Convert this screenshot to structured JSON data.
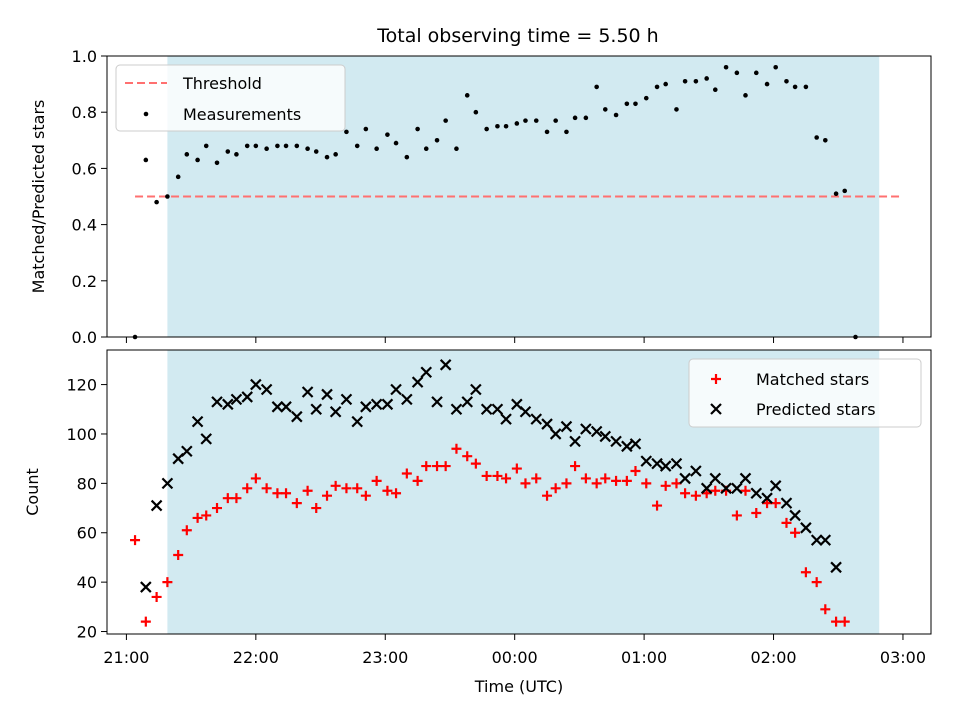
{
  "chart_data": [
    {
      "type": "scatter",
      "title": "Total observing time = 5.50 h",
      "xlabel": "",
      "ylabel": "Matched/Predicted stars",
      "xlim": [
        "20:51",
        "03:13"
      ],
      "ylim": [
        0,
        1.0
      ],
      "yticks": [
        "0.0",
        "0.2",
        "0.4",
        "0.6",
        "0.8",
        "1.0"
      ],
      "xticks": [
        "21:00",
        "22:00",
        "23:00",
        "00:00",
        "01:00",
        "02:00",
        "03:00"
      ],
      "shaded_span": [
        "21:19",
        "02:49"
      ],
      "legend_position": "upper-left",
      "threshold": {
        "name": "Threshold",
        "value": 0.5,
        "x_range": [
          "21:04",
          "03:00"
        ],
        "color": "#ff7070"
      },
      "series": [
        {
          "name": "Measurements",
          "color": "#000000",
          "points": [
            [
              "21:04",
              0.0
            ],
            [
              "21:09",
              0.63
            ],
            [
              "21:14",
              0.48
            ],
            [
              "21:19",
              0.5
            ],
            [
              "21:24",
              0.57
            ],
            [
              "21:28",
              0.65
            ],
            [
              "21:33",
              0.63
            ],
            [
              "21:37",
              0.68
            ],
            [
              "21:42",
              0.62
            ],
            [
              "21:47",
              0.66
            ],
            [
              "21:51",
              0.65
            ],
            [
              "21:56",
              0.68
            ],
            [
              "22:00",
              0.68
            ],
            [
              "22:05",
              0.67
            ],
            [
              "22:10",
              0.68
            ],
            [
              "22:14",
              0.68
            ],
            [
              "22:19",
              0.68
            ],
            [
              "22:24",
              0.67
            ],
            [
              "22:28",
              0.66
            ],
            [
              "22:33",
              0.64
            ],
            [
              "22:37",
              0.65
            ],
            [
              "22:42",
              0.73
            ],
            [
              "22:47",
              0.68
            ],
            [
              "22:51",
              0.74
            ],
            [
              "22:56",
              0.67
            ],
            [
              "23:01",
              0.72
            ],
            [
              "23:05",
              0.69
            ],
            [
              "23:10",
              0.64
            ],
            [
              "23:15",
              0.74
            ],
            [
              "23:19",
              0.67
            ],
            [
              "23:24",
              0.7
            ],
            [
              "23:28",
              0.77
            ],
            [
              "23:33",
              0.67
            ],
            [
              "23:38",
              0.86
            ],
            [
              "23:42",
              0.8
            ],
            [
              "23:47",
              0.74
            ],
            [
              "23:52",
              0.75
            ],
            [
              "23:56",
              0.75
            ],
            [
              "00:01",
              0.76
            ],
            [
              "00:05",
              0.77
            ],
            [
              "00:10",
              0.77
            ],
            [
              "00:15",
              0.73
            ],
            [
              "00:19",
              0.77
            ],
            [
              "00:24",
              0.73
            ],
            [
              "00:28",
              0.78
            ],
            [
              "00:33",
              0.78
            ],
            [
              "00:38",
              0.89
            ],
            [
              "00:42",
              0.81
            ],
            [
              "00:47",
              0.79
            ],
            [
              "00:52",
              0.83
            ],
            [
              "00:56",
              0.83
            ],
            [
              "01:01",
              0.85
            ],
            [
              "01:06",
              0.89
            ],
            [
              "01:10",
              0.9
            ],
            [
              "01:15",
              0.81
            ],
            [
              "01:19",
              0.91
            ],
            [
              "01:24",
              0.91
            ],
            [
              "01:29",
              0.92
            ],
            [
              "01:33",
              0.88
            ],
            [
              "01:38",
              0.96
            ],
            [
              "01:43",
              0.94
            ],
            [
              "01:47",
              0.86
            ],
            [
              "01:52",
              0.94
            ],
            [
              "01:57",
              0.9
            ],
            [
              "02:01",
              0.96
            ],
            [
              "02:06",
              0.91
            ],
            [
              "02:10",
              0.89
            ],
            [
              "02:15",
              0.89
            ],
            [
              "02:20",
              0.71
            ],
            [
              "02:24",
              0.7
            ],
            [
              "02:29",
              0.51
            ],
            [
              "02:33",
              0.52
            ],
            [
              "02:38",
              0.0
            ]
          ]
        }
      ]
    },
    {
      "type": "scatter",
      "title": "",
      "xlabel": "Time (UTC)",
      "ylabel": "Count",
      "xlim": [
        "20:51",
        "03:13"
      ],
      "ylim": [
        19,
        134
      ],
      "yticks": [
        "20",
        "40",
        "60",
        "80",
        "100",
        "120"
      ],
      "xticks": [
        "21:00",
        "22:00",
        "23:00",
        "00:00",
        "01:00",
        "02:00",
        "03:00"
      ],
      "shaded_span": [
        "21:19",
        "02:49"
      ],
      "legend_position": "upper-right",
      "series": [
        {
          "name": "Matched stars",
          "color": "#ff0000",
          "marker": "plus",
          "points": [
            [
              "21:04",
              57
            ],
            [
              "21:09",
              24
            ],
            [
              "21:14",
              34
            ],
            [
              "21:19",
              40
            ],
            [
              "21:24",
              51
            ],
            [
              "21:28",
              61
            ],
            [
              "21:33",
              66
            ],
            [
              "21:37",
              67
            ],
            [
              "21:42",
              70
            ],
            [
              "21:47",
              74
            ],
            [
              "21:51",
              74
            ],
            [
              "21:56",
              78
            ],
            [
              "22:00",
              82
            ],
            [
              "22:05",
              78
            ],
            [
              "22:10",
              76
            ],
            [
              "22:14",
              76
            ],
            [
              "22:19",
              72
            ],
            [
              "22:24",
              77
            ],
            [
              "22:28",
              70
            ],
            [
              "22:33",
              75
            ],
            [
              "22:37",
              79
            ],
            [
              "22:42",
              78
            ],
            [
              "22:47",
              78
            ],
            [
              "22:51",
              75
            ],
            [
              "22:56",
              81
            ],
            [
              "23:01",
              77
            ],
            [
              "23:05",
              76
            ],
            [
              "23:10",
              84
            ],
            [
              "23:15",
              81
            ],
            [
              "23:19",
              87
            ],
            [
              "23:24",
              87
            ],
            [
              "23:28",
              87
            ],
            [
              "23:33",
              94
            ],
            [
              "23:38",
              91
            ],
            [
              "23:42",
              88
            ],
            [
              "23:47",
              83
            ],
            [
              "23:52",
              83
            ],
            [
              "23:56",
              82
            ],
            [
              "00:01",
              86
            ],
            [
              "00:05",
              80
            ],
            [
              "00:10",
              82
            ],
            [
              "00:15",
              75
            ],
            [
              "00:19",
              78
            ],
            [
              "00:24",
              80
            ],
            [
              "00:28",
              87
            ],
            [
              "00:33",
              82
            ],
            [
              "00:38",
              80
            ],
            [
              "00:42",
              82
            ],
            [
              "00:47",
              81
            ],
            [
              "00:52",
              81
            ],
            [
              "00:56",
              85
            ],
            [
              "01:01",
              80
            ],
            [
              "01:06",
              71
            ],
            [
              "01:10",
              79
            ],
            [
              "01:15",
              80
            ],
            [
              "01:19",
              76
            ],
            [
              "01:24",
              75
            ],
            [
              "01:29",
              76
            ],
            [
              "01:33",
              77
            ],
            [
              "01:38",
              77
            ],
            [
              "01:43",
              67
            ],
            [
              "01:47",
              77
            ],
            [
              "01:52",
              68
            ],
            [
              "01:57",
              72
            ],
            [
              "02:01",
              72
            ],
            [
              "02:06",
              64
            ],
            [
              "02:10",
              60
            ],
            [
              "02:15",
              44
            ],
            [
              "02:20",
              40
            ],
            [
              "02:24",
              29
            ],
            [
              "02:29",
              24
            ],
            [
              "02:33",
              24
            ]
          ]
        },
        {
          "name": "Predicted stars",
          "color": "#000000",
          "marker": "x",
          "points": [
            [
              "21:09",
              38
            ],
            [
              "21:14",
              71
            ],
            [
              "21:19",
              80
            ],
            [
              "21:24",
              90
            ],
            [
              "21:28",
              93
            ],
            [
              "21:33",
              105
            ],
            [
              "21:37",
              98
            ],
            [
              "21:42",
              113
            ],
            [
              "21:47",
              112
            ],
            [
              "21:51",
              114
            ],
            [
              "21:56",
              115
            ],
            [
              "22:00",
              120
            ],
            [
              "22:05",
              118
            ],
            [
              "22:10",
              111
            ],
            [
              "22:14",
              111
            ],
            [
              "22:19",
              107
            ],
            [
              "22:24",
              117
            ],
            [
              "22:28",
              110
            ],
            [
              "22:33",
              116
            ],
            [
              "22:37",
              109
            ],
            [
              "22:42",
              114
            ],
            [
              "22:47",
              105
            ],
            [
              "22:51",
              111
            ],
            [
              "22:56",
              112
            ],
            [
              "23:01",
              112
            ],
            [
              "23:05",
              118
            ],
            [
              "23:10",
              114
            ],
            [
              "23:15",
              121
            ],
            [
              "23:19",
              125
            ],
            [
              "23:24",
              113
            ],
            [
              "23:28",
              128
            ],
            [
              "23:33",
              110
            ],
            [
              "23:38",
              113
            ],
            [
              "23:42",
              118
            ],
            [
              "23:47",
              110
            ],
            [
              "23:52",
              110
            ],
            [
              "23:56",
              106
            ],
            [
              "00:01",
              112
            ],
            [
              "00:05",
              109
            ],
            [
              "00:10",
              106
            ],
            [
              "00:15",
              104
            ],
            [
              "00:19",
              100
            ],
            [
              "00:24",
              103
            ],
            [
              "00:28",
              97
            ],
            [
              "00:33",
              102
            ],
            [
              "00:38",
              101
            ],
            [
              "00:42",
              99
            ],
            [
              "00:47",
              97
            ],
            [
              "00:52",
              95
            ],
            [
              "00:56",
              96
            ],
            [
              "01:01",
              89
            ],
            [
              "01:06",
              88
            ],
            [
              "01:10",
              87
            ],
            [
              "01:15",
              88
            ],
            [
              "01:19",
              82
            ],
            [
              "01:24",
              85
            ],
            [
              "01:29",
              78
            ],
            [
              "01:33",
              82
            ],
            [
              "01:38",
              78
            ],
            [
              "01:43",
              78
            ],
            [
              "01:47",
              82
            ],
            [
              "01:52",
              76
            ],
            [
              "01:57",
              74
            ],
            [
              "02:01",
              79
            ],
            [
              "02:06",
              72
            ],
            [
              "02:10",
              67
            ],
            [
              "02:15",
              62
            ],
            [
              "02:20",
              57
            ],
            [
              "02:24",
              57
            ],
            [
              "02:29",
              46
            ]
          ]
        }
      ]
    }
  ]
}
